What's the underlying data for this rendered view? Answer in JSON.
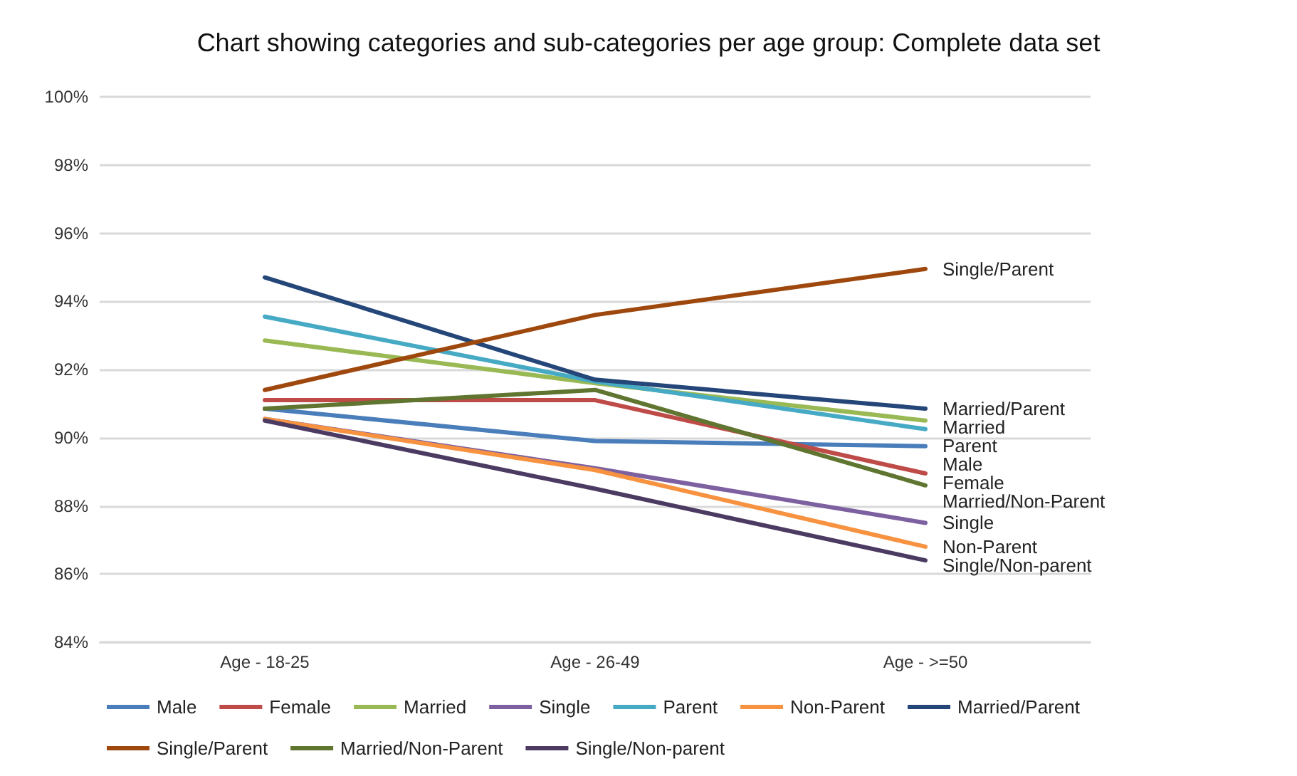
{
  "chart_data": {
    "type": "line",
    "title": "Chart showing categories and sub-categories per age group: Complete data set",
    "categories": [
      "Age - 18-25",
      "Age - 26-49",
      "Age - >=50"
    ],
    "series": [
      {
        "name": "Male",
        "color": "#4a7ebb",
        "values": [
          90.85,
          89.9,
          89.75
        ]
      },
      {
        "name": "Female",
        "color": "#be4b48",
        "values": [
          91.1,
          91.1,
          88.95
        ]
      },
      {
        "name": "Married",
        "color": "#98b954",
        "values": [
          92.85,
          91.6,
          90.5
        ]
      },
      {
        "name": "Single",
        "color": "#7d60a0",
        "values": [
          90.55,
          89.1,
          87.5
        ]
      },
      {
        "name": "Parent",
        "color": "#46aac5",
        "values": [
          93.55,
          91.65,
          90.25
        ]
      },
      {
        "name": "Non-Parent",
        "color": "#f69240",
        "values": [
          90.55,
          89.05,
          86.8
        ]
      },
      {
        "name": "Married/Parent",
        "color": "#254678",
        "values": [
          94.7,
          91.7,
          90.85
        ]
      },
      {
        "name": "Single/Parent",
        "color": "#9e480e",
        "values": [
          91.4,
          93.6,
          94.95
        ]
      },
      {
        "name": "Married/Non-Parent",
        "color": "#5f7530",
        "values": [
          90.85,
          91.4,
          88.6
        ]
      },
      {
        "name": "Single/Non-parent",
        "color": "#4b3b62",
        "values": [
          90.5,
          88.5,
          86.4
        ]
      }
    ],
    "ylim": [
      84,
      100
    ],
    "yticks": [
      {
        "value": 84,
        "label": "84%"
      },
      {
        "value": 86,
        "label": "86%"
      },
      {
        "value": 88,
        "label": "88%"
      },
      {
        "value": 90,
        "label": "90%"
      },
      {
        "value": 92,
        "label": "92%"
      },
      {
        "value": 94,
        "label": "94%"
      },
      {
        "value": 96,
        "label": "96%"
      },
      {
        "value": 98,
        "label": "98%"
      },
      {
        "value": 100,
        "label": "100%"
      }
    ],
    "grid": "y",
    "legend": "bottom",
    "marker": "none",
    "line_style": "solid"
  }
}
